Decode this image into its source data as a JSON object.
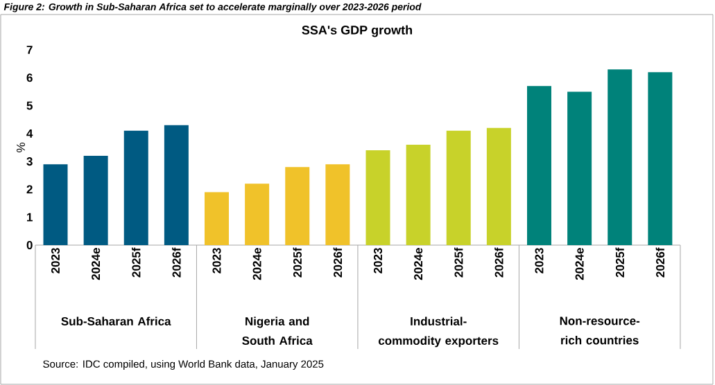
{
  "chart_data": {
    "type": "bar",
    "title": "Figure 2: Growth in Sub-Saharan Africa set to accelerate marginally over 2023-2026 period",
    "subtitle": "SSA's GDP growth",
    "ylabel": "%",
    "categories": [
      "2023",
      "2024e",
      "2025f",
      "2026f",
      "2023",
      "2024e",
      "2025f",
      "2026f",
      "2023",
      "2024e",
      "2025f",
      "2026f",
      "2023",
      "2024e",
      "2025f",
      "2026f"
    ],
    "values": [
      2.9,
      3.2,
      4.1,
      4.3,
      1.9,
      2.2,
      2.8,
      2.9,
      3.4,
      3.6,
      4.1,
      4.2,
      5.7,
      5.5,
      6.3,
      6.2
    ],
    "colors": [
      "#005a82",
      "#005a82",
      "#005a82",
      "#005a82",
      "#f0c22a",
      "#f0c22a",
      "#f0c22a",
      "#f0c22a",
      "#c8d22a",
      "#c8d22a",
      "#c8d22a",
      "#c8d22a",
      "#00827a",
      "#00827a",
      "#00827a",
      "#00827a"
    ],
    "ylim": [
      0,
      7
    ],
    "yticks": [
      0,
      1,
      2,
      3,
      4,
      5,
      6,
      7
    ],
    "annotations": [
      "Sub-Saharan Africa",
      "Nigeria and South Africa",
      "Industrial-commodity exporters",
      "Non-resource-rich countries",
      "Source: IDC compiled, using World Bank data, January 2025"
    ]
  }
}
